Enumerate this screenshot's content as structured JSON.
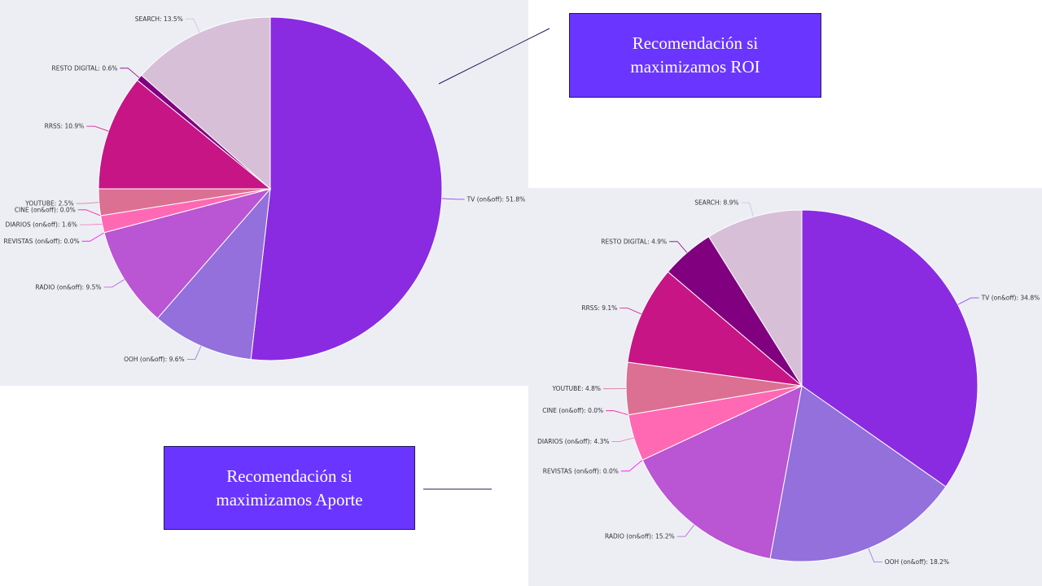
{
  "callouts": {
    "roi": [
      "Recomendación si",
      "maximizamos ROI"
    ],
    "aporte": [
      "Recomendación si",
      "maximizamos Aporte"
    ]
  },
  "chart_data": [
    {
      "type": "pie",
      "title": "",
      "start": "top, clockwise",
      "slices": [
        {
          "label": "TV (on&off): 51.8%",
          "value": 51.8,
          "color": "#8a2be2"
        },
        {
          "label": "OOH (on&off): 9.6%",
          "value": 9.6,
          "color": "#9370db"
        },
        {
          "label": "RADIO (on&off): 9.5%",
          "value": 9.5,
          "color": "#ba55d3"
        },
        {
          "label": "REVISTAS (on&off): 0.0%",
          "value": 0.0,
          "color": "#ff00ff"
        },
        {
          "label": "DIARIOS (on&off): 1.6%",
          "value": 1.6,
          "color": "#ff69b4"
        },
        {
          "label": "CINE (on&off): 0.0%",
          "value": 0.0,
          "color": "#ff1493"
        },
        {
          "label": "YOUTUBE: 2.5%",
          "value": 2.5,
          "color": "#db7093"
        },
        {
          "label": "RRSS: 10.9%",
          "value": 10.9,
          "color": "#c71585"
        },
        {
          "label": "RESTO DIGITAL: 0.6%",
          "value": 0.6,
          "color": "#800080"
        },
        {
          "label": "SEARCH: 13.5%",
          "value": 13.5,
          "color": "#d8bfd8"
        }
      ]
    },
    {
      "type": "pie",
      "title": "",
      "start": "top, clockwise",
      "slices": [
        {
          "label": "TV (on&off): 34.8%",
          "value": 34.8,
          "color": "#8a2be2"
        },
        {
          "label": "OOH (on&off): 18.2%",
          "value": 18.2,
          "color": "#9370db"
        },
        {
          "label": "RADIO (on&off): 15.2%",
          "value": 15.2,
          "color": "#ba55d3"
        },
        {
          "label": "REVISTAS (on&off): 0.0%",
          "value": 0.0,
          "color": "#ff00ff"
        },
        {
          "label": "DIARIOS (on&off): 4.3%",
          "value": 4.3,
          "color": "#ff69b4"
        },
        {
          "label": "CINE (on&off): 0.0%",
          "value": 0.0,
          "color": "#ff1493"
        },
        {
          "label": "YOUTUBE: 4.8%",
          "value": 4.8,
          "color": "#db7093"
        },
        {
          "label": "RRSS: 9.1%",
          "value": 9.1,
          "color": "#c71585"
        },
        {
          "label": "RESTO DIGITAL: 4.9%",
          "value": 4.9,
          "color": "#800080"
        },
        {
          "label": "SEARCH: 8.9%",
          "value": 8.9,
          "color": "#d8bfd8"
        }
      ]
    }
  ]
}
